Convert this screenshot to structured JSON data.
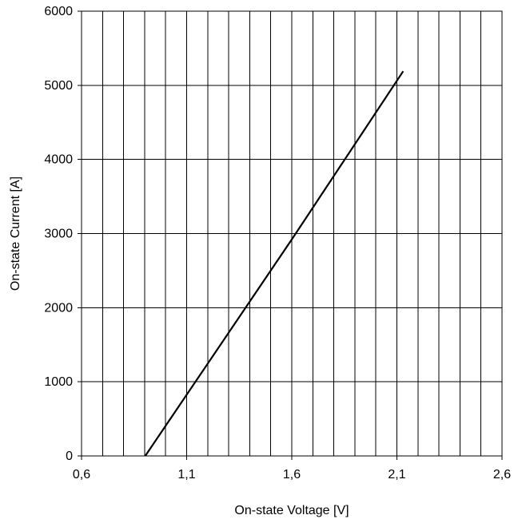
{
  "chart_data": {
    "type": "line",
    "title": "",
    "xlabel": "On-state Voltage [V]",
    "ylabel": "On-state Current [A]",
    "xlim": [
      0.6,
      2.6
    ],
    "ylim": [
      0,
      6000
    ],
    "x_ticks": [
      0.6,
      1.1,
      1.6,
      2.1,
      2.6
    ],
    "x_tick_labels": [
      "0,6",
      "1,1",
      "1,6",
      "2,1",
      "2,6"
    ],
    "x_minor_grid_step": 0.1,
    "y_ticks": [
      0,
      1000,
      2000,
      3000,
      4000,
      5000,
      6000
    ],
    "y_tick_labels": [
      "0",
      "1000",
      "2000",
      "3000",
      "4000",
      "5000",
      "6000"
    ],
    "grid": true,
    "legend": "none",
    "line_color": "#000000",
    "series": [
      {
        "x": [
          0.903,
          1.6,
          2.13
        ],
        "y": [
          0,
          2920,
          5190
        ]
      }
    ]
  }
}
